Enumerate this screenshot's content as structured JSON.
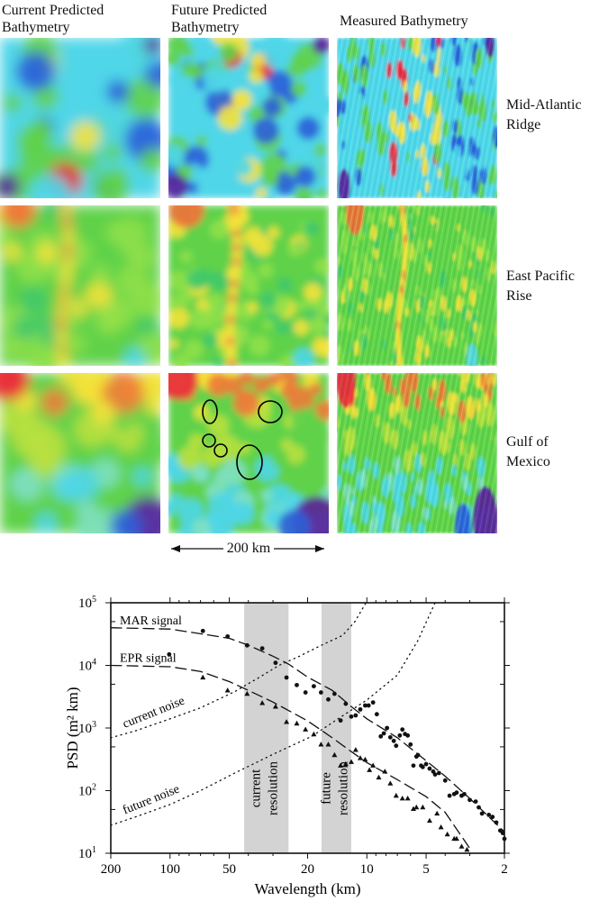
{
  "figure": {
    "column_titles": [
      {
        "line1": "Current Predicted",
        "line2": "Bathymetry"
      },
      {
        "line1": "Future Predicted",
        "line2": "Bathymetry"
      },
      {
        "line1": "Measured Bathymetry",
        "line2": ""
      }
    ],
    "row_labels": [
      {
        "line1": "Mid-Atlantic",
        "line2": "Ridge"
      },
      {
        "line1": "East Pacific",
        "line2": "Rise"
      },
      {
        "line1": "Gulf of",
        "line2": "Mexico"
      }
    ],
    "scale_bar_label": "200 km",
    "colors": {
      "red": "#e8283c",
      "yellow": "#f4e23a",
      "green": "#5fd24a",
      "cyan": "#4fd6e8",
      "blue": "#2b5fd8",
      "purple": "#5a1f9a"
    }
  },
  "chart_data": {
    "type": "scatter",
    "xlabel": "Wavelength (km)",
    "ylabel": "PSD (m² km)",
    "xscale": "log",
    "yscale": "log",
    "x_reversed": true,
    "xlim": [
      200,
      2
    ],
    "ylim": [
      10,
      100000
    ],
    "x_ticks": [
      200,
      100,
      50,
      20,
      10,
      5,
      2
    ],
    "x_tick_labels": [
      "200",
      "100",
      "50",
      "20",
      "10",
      "5",
      "2"
    ],
    "y_ticks": [
      {
        "base": "10",
        "exp": "5",
        "value": 100000
      },
      {
        "base": "10",
        "exp": "4",
        "value": 10000
      },
      {
        "base": "10",
        "exp": "3",
        "value": 1000
      },
      {
        "base": "10",
        "exp": "2",
        "value": 100
      },
      {
        "base": "10",
        "exp": "1",
        "value": 10
      }
    ],
    "bands": [
      {
        "label1": "current",
        "label2": "resolution",
        "from": 42,
        "to": 25,
        "color": "#d3d3d3"
      },
      {
        "label1": "future",
        "label2": "resolution",
        "from": 17,
        "to": 12,
        "color": "#d3d3d3"
      }
    ],
    "curves": [
      {
        "name": "MAR signal",
        "style": "dashed",
        "label_at": [
          180,
          45000
        ],
        "points": [
          [
            200,
            40000
          ],
          [
            100,
            38000
          ],
          [
            70,
            32000
          ],
          [
            50,
            27000
          ],
          [
            40,
            21000
          ],
          [
            30,
            14000
          ],
          [
            25,
            10500
          ],
          [
            20,
            6500
          ],
          [
            15,
            4000
          ],
          [
            12,
            2200
          ],
          [
            10,
            1400
          ],
          [
            7,
            700
          ],
          [
            5,
            300
          ],
          [
            4,
            170
          ],
          [
            3,
            75
          ],
          [
            2,
            22
          ]
        ]
      },
      {
        "name": "EPR signal",
        "style": "dashed",
        "label_at": [
          180,
          11500
        ],
        "points": [
          [
            200,
            10000
          ],
          [
            100,
            9500
          ],
          [
            70,
            8000
          ],
          [
            50,
            5500
          ],
          [
            40,
            4000
          ],
          [
            30,
            2600
          ],
          [
            20,
            1300
          ],
          [
            15,
            700
          ],
          [
            12,
            420
          ],
          [
            10,
            280
          ],
          [
            7,
            150
          ],
          [
            5,
            80
          ],
          [
            4,
            45
          ],
          [
            3,
            12
          ]
        ]
      },
      {
        "name": "current noise",
        "style": "dotted",
        "label_at": [
          170,
          1000
        ],
        "points": [
          [
            200,
            700
          ],
          [
            150,
            900
          ],
          [
            100,
            1400
          ],
          [
            70,
            2100
          ],
          [
            47,
            3800
          ],
          [
            35,
            6500
          ],
          [
            28,
            10000
          ],
          [
            22,
            14000
          ],
          [
            17,
            21000
          ],
          [
            13.3,
            30000
          ],
          [
            11.5,
            50000
          ],
          [
            10.1,
            100000
          ]
        ]
      },
      {
        "name": "future noise",
        "style": "dotted",
        "label_at": [
          170,
          42
        ],
        "points": [
          [
            200,
            28
          ],
          [
            150,
            38
          ],
          [
            100,
            60
          ],
          [
            70,
            100
          ],
          [
            47,
            190
          ],
          [
            30,
            380
          ],
          [
            19,
            740
          ],
          [
            14,
            1400
          ],
          [
            10,
            2800
          ],
          [
            7,
            7000
          ],
          [
            5.5,
            25000
          ],
          [
            4.5,
            100000
          ]
        ]
      }
    ],
    "series": [
      {
        "name": "MAR",
        "marker": "circle",
        "points": [
          [
            101,
            15000
          ],
          [
            68.1,
            35500
          ],
          [
            51,
            29000
          ],
          [
            40.6,
            20900
          ],
          [
            34,
            18700
          ],
          [
            29.1,
            11000
          ],
          [
            25.6,
            6400
          ],
          [
            22.7,
            4850
          ],
          [
            20.5,
            3700
          ],
          [
            18.6,
            4650
          ],
          [
            17.1,
            3700
          ],
          [
            15.7,
            2860
          ],
          [
            14.6,
            3520
          ],
          [
            13.6,
            1320
          ],
          [
            12.8,
            2440
          ],
          [
            12.0,
            1520
          ],
          [
            11.4,
            1590
          ],
          [
            10.8,
            1980
          ],
          [
            10.2,
            2290
          ],
          [
            9.8,
            2290
          ],
          [
            9.3,
            2560
          ],
          [
            8.9,
            1660
          ],
          [
            8.5,
            734
          ],
          [
            8.2,
            820
          ],
          [
            7.9,
            1000
          ],
          [
            7.6,
            710
          ],
          [
            7.3,
            622
          ],
          [
            7.1,
            521
          ],
          [
            6.8,
            759
          ],
          [
            6.6,
            946
          ],
          [
            6.4,
            802
          ],
          [
            6.2,
            759
          ],
          [
            6.0,
            545
          ],
          [
            5.8,
            251
          ],
          [
            5.6,
            350
          ],
          [
            5.5,
            370
          ],
          [
            5.3,
            251
          ],
          [
            5.2,
            238
          ],
          [
            5.0,
            265
          ],
          [
            4.8,
            225
          ],
          [
            4.6,
            202
          ],
          [
            4.5,
            181
          ],
          [
            4.3,
            191
          ],
          [
            4.0,
            145
          ],
          [
            3.8,
            83
          ],
          [
            3.6,
            88
          ],
          [
            3.5,
            93
          ],
          [
            3.3,
            83
          ],
          [
            3.2,
            88
          ],
          [
            3.0,
            71
          ],
          [
            2.8,
            67
          ],
          [
            2.7,
            54
          ],
          [
            2.6,
            43
          ],
          [
            2.4,
            41
          ],
          [
            2.3,
            38
          ],
          [
            2.2,
            31
          ],
          [
            2.1,
            23
          ],
          [
            2.04,
            21
          ],
          [
            2.0,
            17
          ]
        ]
      },
      {
        "name": "EPR",
        "marker": "triangle",
        "points": [
          [
            68.1,
            6400
          ],
          [
            51,
            3980
          ],
          [
            40.6,
            3520
          ],
          [
            34,
            2500
          ],
          [
            29.1,
            2190
          ],
          [
            25.6,
            1250
          ],
          [
            22.7,
            1180
          ],
          [
            20.5,
            946
          ],
          [
            18.6,
            793
          ],
          [
            17.1,
            545
          ],
          [
            15.7,
            545
          ],
          [
            14.6,
            370
          ],
          [
            13.6,
            251
          ],
          [
            12.8,
            265
          ],
          [
            12.0,
            287
          ],
          [
            11.4,
            447
          ],
          [
            10.8,
            331
          ],
          [
            10.2,
            313
          ],
          [
            9.7,
            213
          ],
          [
            9.3,
            251
          ],
          [
            8.7,
            162
          ],
          [
            8.1,
            202
          ],
          [
            7.6,
            130
          ],
          [
            7.1,
            83
          ],
          [
            6.6,
            75
          ],
          [
            6.2,
            75
          ],
          [
            5.8,
            51
          ],
          [
            5.6,
            54
          ],
          [
            5.2,
            54
          ],
          [
            4.8,
            33
          ],
          [
            4.4,
            43
          ],
          [
            4.2,
            26
          ],
          [
            3.9,
            20
          ],
          [
            3.6,
            17
          ],
          [
            3.5,
            17
          ],
          [
            3.3,
            12.8
          ],
          [
            3.1,
            11.4
          ]
        ]
      }
    ]
  }
}
